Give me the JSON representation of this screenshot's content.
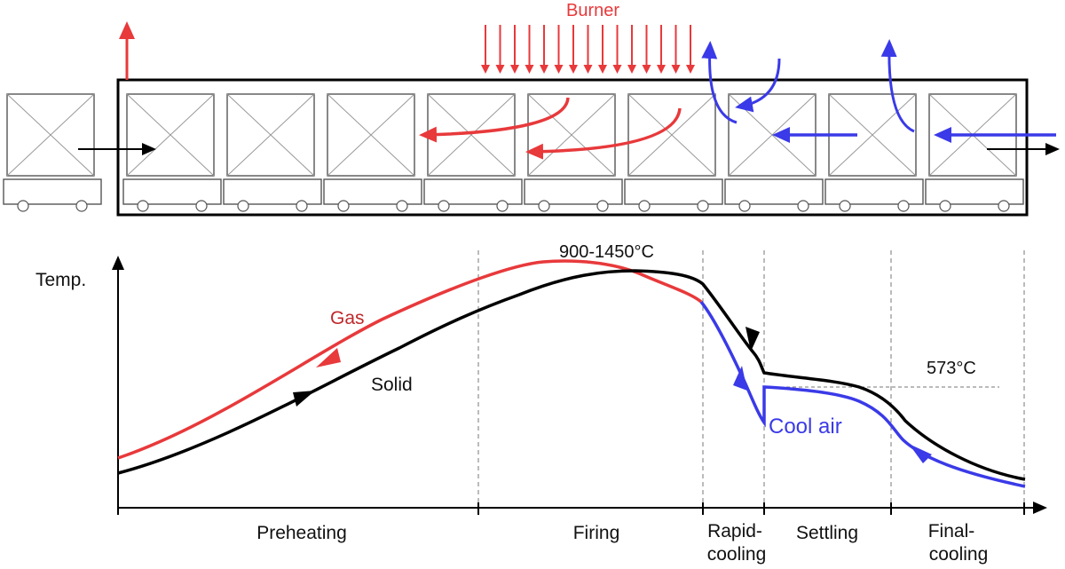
{
  "labels": {
    "burner": "Burner",
    "temp_axis": "Temp.",
    "peak_temp": "900-1450°C",
    "quartz_temp": "573°C",
    "gas": "Gas",
    "solid": "Solid",
    "cool_air": "Cool air"
  },
  "zones": {
    "preheating": "Preheating",
    "firing": "Firing",
    "rapid_line1": "Rapid-",
    "rapid_line2": "cooling",
    "settling": "Settling",
    "final_line1": "Final-",
    "final_line2": "cooling"
  },
  "colors": {
    "gas": "#e8393b",
    "solid": "#000000",
    "cool_air": "#3a3ae8",
    "burner": "#e8393b"
  }
}
